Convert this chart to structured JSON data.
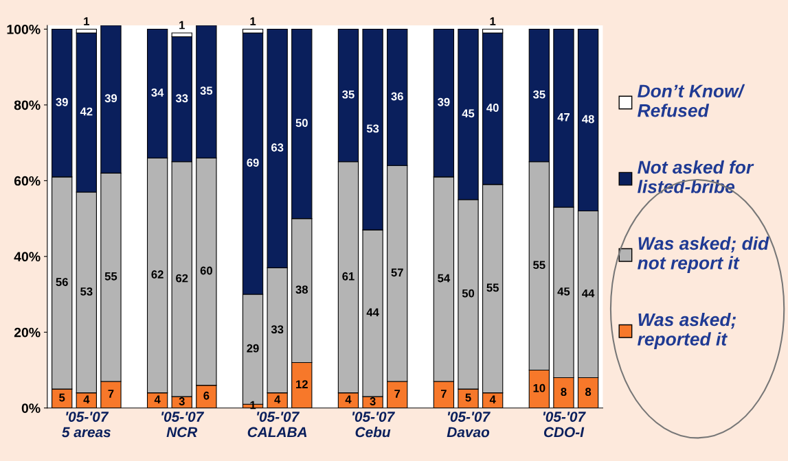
{
  "chart_data": {
    "type": "bar",
    "stacked": true,
    "categories": [
      null,
      "'05-'07\n5 areas",
      null,
      null,
      "'05-'07\nNCR",
      null,
      null,
      "'05-'07\nCALABA",
      null,
      null,
      "'05-'07\nCebu",
      null,
      null,
      "'05-'07\nDavao",
      null,
      null,
      "'05-'07\nCDO-I",
      null
    ],
    "series": [
      {
        "name": "Was asked;\nreported it",
        "color": "#f7782a",
        "values": [
          5,
          4,
          7,
          4,
          3,
          6,
          1,
          4,
          12,
          4,
          3,
          7,
          7,
          5,
          4,
          10,
          8,
          8
        ]
      },
      {
        "name": "Was asked; did\nnot report it",
        "color": "#b4b4b4",
        "values": [
          56,
          53,
          55,
          62,
          62,
          60,
          29,
          33,
          38,
          61,
          44,
          57,
          54,
          50,
          55,
          55,
          45,
          44
        ]
      },
      {
        "name": "Not asked for\nlisted-bribe",
        "color": "#0a1f5c",
        "values": [
          39,
          42,
          39,
          34,
          33,
          35,
          69,
          63,
          50,
          35,
          53,
          36,
          39,
          45,
          40,
          35,
          47,
          48
        ]
      },
      {
        "name": "Don’t Know/\nRefused",
        "color": "#ffffff",
        "values": [
          null,
          1,
          null,
          null,
          1,
          null,
          1,
          null,
          null,
          null,
          null,
          null,
          null,
          null,
          1,
          null,
          null,
          null
        ]
      }
    ],
    "ylim": [
      0,
      101
    ],
    "yticks": [
      {
        "value": 0,
        "label": "0%"
      },
      {
        "value": 20,
        "label": "20%"
      },
      {
        "value": 40,
        "label": "40%"
      },
      {
        "value": 60,
        "label": "60%"
      },
      {
        "value": 80,
        "label": "80%"
      },
      {
        "value": 100,
        "label": "100%"
      }
    ],
    "data_labels": true,
    "legend": "right",
    "grid": false
  }
}
